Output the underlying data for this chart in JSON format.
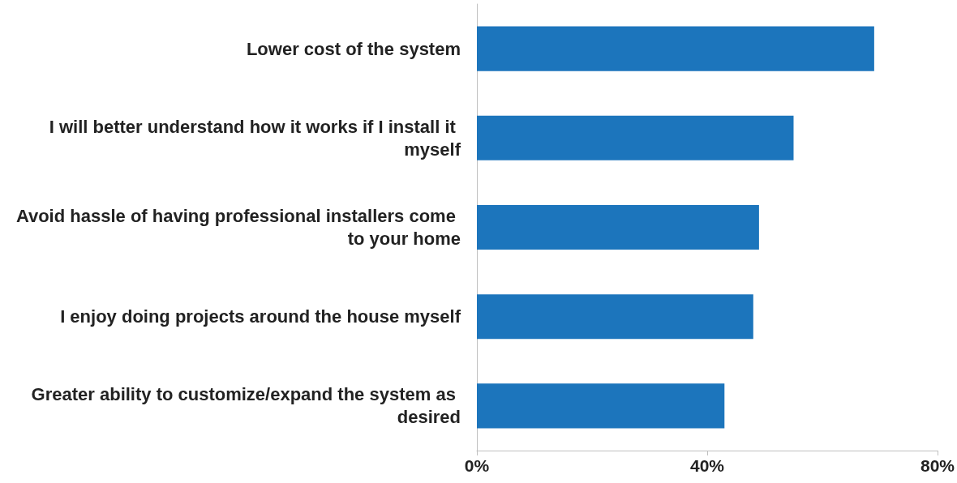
{
  "chart_data": {
    "type": "bar",
    "orientation": "horizontal",
    "categories": [
      "Lower cost of the system",
      "I will better understand how it works if I install it myself",
      "Avoid hassle of having professional installers come to your home",
      "I enjoy doing projects around the house myself",
      "Greater ability to customize/expand the system as desired"
    ],
    "values": [
      69,
      55,
      49,
      48,
      43
    ],
    "color": "#1c75bc",
    "xlim": [
      0,
      80
    ],
    "xticks": [
      {
        "value": 0,
        "label": "0%"
      },
      {
        "value": 40,
        "label": "40%"
      },
      {
        "value": 80,
        "label": "80%"
      }
    ],
    "grid": false
  }
}
